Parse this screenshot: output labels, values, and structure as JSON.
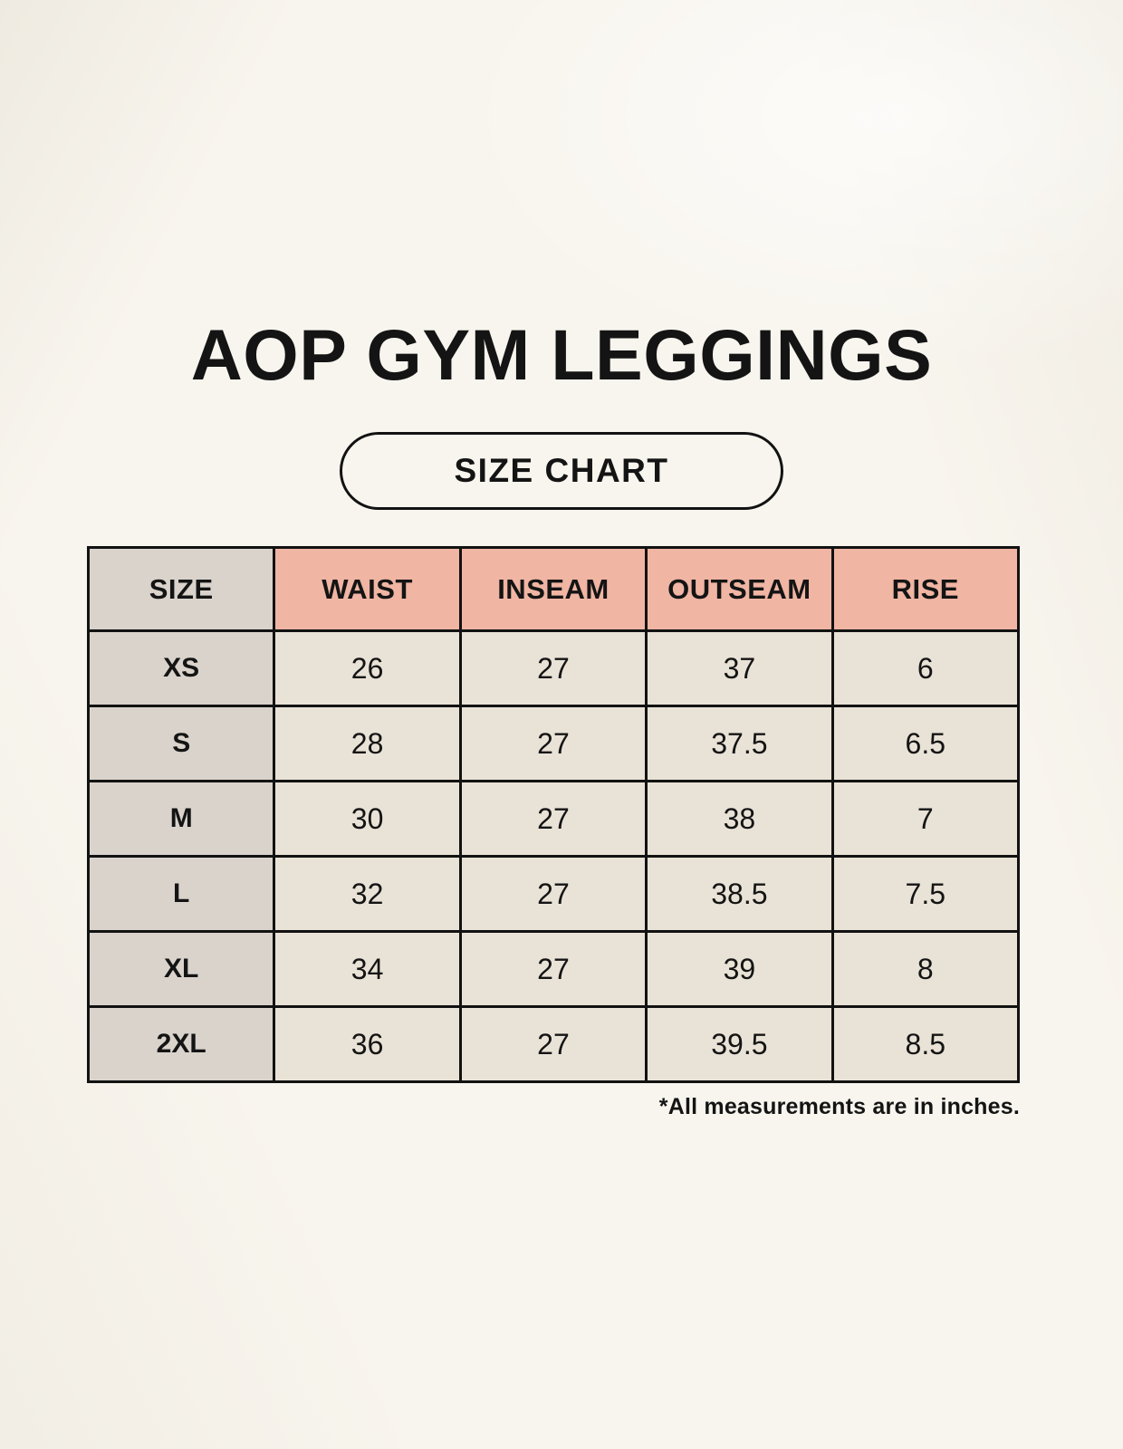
{
  "page": {
    "title": "AOP GYM LEGGINGS",
    "badge_label": "SIZE CHART",
    "footnote": "*All measurements are in inches."
  },
  "colors": {
    "background": "#F8F5EE",
    "header_pink": "#F0B5A3",
    "size_column_gray": "#D9D3CC",
    "cell_cream": "#E9E2D6",
    "border_black": "#121212",
    "text": "#141414"
  },
  "table": {
    "columns": [
      "SIZE",
      "WAIST",
      "INSEAM",
      "OUTSEAM",
      "RISE"
    ],
    "rows": [
      {
        "size": "XS",
        "values": [
          "26",
          "27",
          "37",
          "6"
        ]
      },
      {
        "size": "S",
        "values": [
          "28",
          "27",
          "37.5",
          "6.5"
        ]
      },
      {
        "size": "M",
        "values": [
          "30",
          "27",
          "38",
          "7"
        ]
      },
      {
        "size": "L",
        "values": [
          "32",
          "27",
          "38.5",
          "7.5"
        ]
      },
      {
        "size": "XL",
        "values": [
          "34",
          "27",
          "39",
          "8"
        ]
      },
      {
        "size": "2XL",
        "values": [
          "36",
          "27",
          "39.5",
          "8.5"
        ]
      }
    ]
  },
  "chart_data": {
    "type": "table",
    "title": "AOP GYM LEGGINGS — SIZE CHART",
    "columns": [
      "SIZE",
      "WAIST",
      "INSEAM",
      "OUTSEAM",
      "RISE"
    ],
    "rows": [
      [
        "XS",
        26,
        27,
        37,
        6
      ],
      [
        "S",
        28,
        27,
        37.5,
        6.5
      ],
      [
        "M",
        30,
        27,
        38,
        7
      ],
      [
        "L",
        32,
        27,
        38.5,
        7.5
      ],
      [
        "XL",
        34,
        27,
        39,
        8
      ],
      [
        "2XL",
        36,
        27,
        39.5,
        8.5
      ]
    ],
    "units": "inches",
    "note": "*All measurements are in inches."
  }
}
